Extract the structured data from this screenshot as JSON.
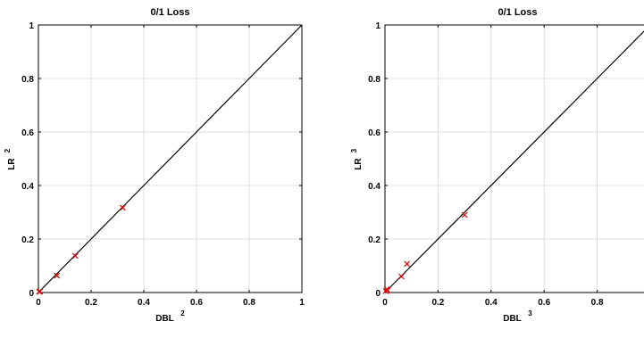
{
  "chart_data": [
    {
      "type": "scatter",
      "title": "0/1 Loss",
      "xlabel": "DBL",
      "xlabel_sup": "2",
      "ylabel": "LR",
      "ylabel_sup": "2",
      "xlim": [
        0,
        1
      ],
      "ylim": [
        0,
        1
      ],
      "xticks": [
        0,
        0.2,
        0.4,
        0.6,
        0.8,
        1
      ],
      "xtick_labels": [
        "0",
        "0.2",
        "0.4",
        "0.6",
        "0.8",
        "1"
      ],
      "yticks": [
        0,
        0.2,
        0.4,
        0.6,
        0.8,
        1
      ],
      "ytick_labels": [
        "0",
        "0.2",
        "0.4",
        "0.6",
        "0.8",
        "1"
      ],
      "grid": true,
      "diagonal": true,
      "marker": "x",
      "marker_color": "#e00000",
      "line_color": "#000000",
      "points": [
        {
          "x": 0.003,
          "y": 0.003
        },
        {
          "x": 0.006,
          "y": 0.004
        },
        {
          "x": 0.07,
          "y": 0.063
        },
        {
          "x": 0.14,
          "y": 0.137
        },
        {
          "x": 0.32,
          "y": 0.317
        }
      ]
    },
    {
      "type": "scatter",
      "title": "0/1 Loss",
      "xlabel": "DBL",
      "xlabel_sup": "3",
      "ylabel": "LR",
      "ylabel_sup": "3",
      "xlim": [
        0,
        1
      ],
      "ylim": [
        0,
        1
      ],
      "xticks": [
        0,
        0.2,
        0.4,
        0.6,
        0.8,
        1
      ],
      "xtick_labels": [
        "0",
        "0.2",
        "0.4",
        "0.6",
        "0.8",
        ""
      ],
      "yticks": [
        0,
        0.2,
        0.4,
        0.6,
        0.8,
        1
      ],
      "ytick_labels": [
        "0",
        "0.2",
        "0.4",
        "0.6",
        "0.8",
        "1"
      ],
      "grid": true,
      "diagonal": true,
      "marker": "x",
      "marker_color": "#e00000",
      "line_color": "#000000",
      "points": [
        {
          "x": 0.003,
          "y": 0.005
        },
        {
          "x": 0.007,
          "y": 0.012
        },
        {
          "x": 0.01,
          "y": 0.008
        },
        {
          "x": 0.062,
          "y": 0.06
        },
        {
          "x": 0.083,
          "y": 0.107
        },
        {
          "x": 0.3,
          "y": 0.29
        }
      ]
    }
  ]
}
